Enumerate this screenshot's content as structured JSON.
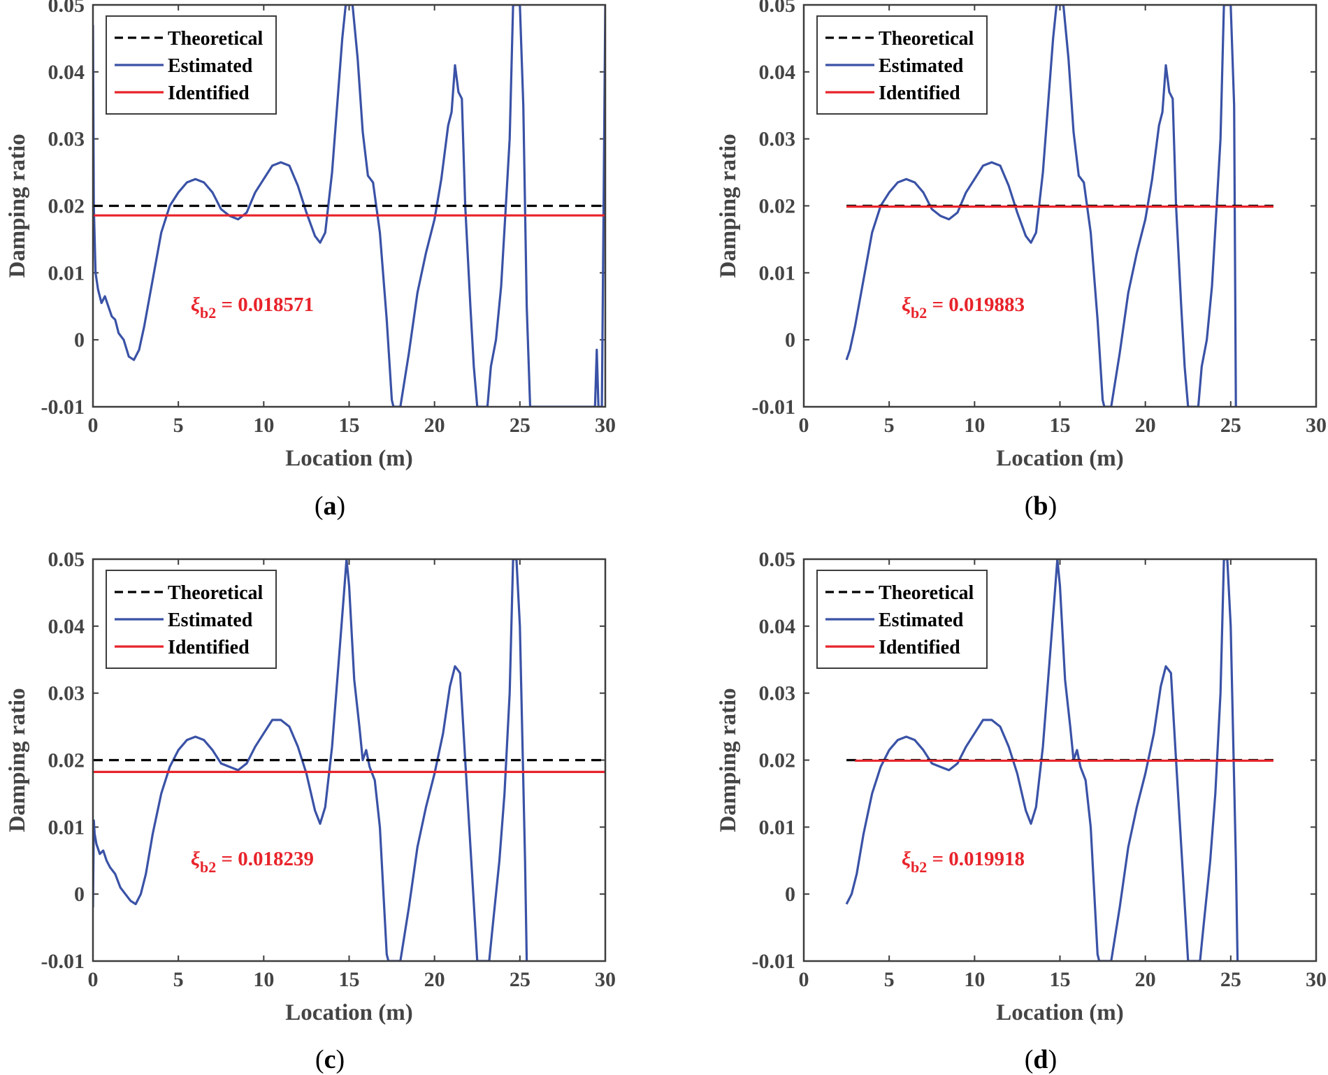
{
  "colors": {
    "theoretical": "#000000",
    "estimated": "#3a52a6",
    "identified": "#e8232a",
    "axis": "#3d3d3d",
    "label": "#444444",
    "annotation": "#e8232a"
  },
  "chart_data": [
    {
      "type": "line",
      "panel": "(a)",
      "panel_letter": "a",
      "xlabel": "Location (m)",
      "ylabel": "Damping ratio",
      "xlim": [
        0,
        30
      ],
      "ylim": [
        -0.01,
        0.05
      ],
      "xticks": [
        "0",
        "5",
        "10",
        "15",
        "20",
        "25",
        "30"
      ],
      "yticks": [
        "-0.01",
        "0",
        "0.01",
        "0.02",
        "0.03",
        "0.04",
        "0.05"
      ],
      "legend": [
        "Theoretical",
        "Estimated",
        "Identified"
      ],
      "legend_position": "top-left",
      "annotation": {
        "symbol": "ξ",
        "subscript": "b2",
        "text": " = 0.018571"
      },
      "series": [
        {
          "name": "Theoretical",
          "style": "dashed",
          "x": [
            0,
            30
          ],
          "y": [
            0.02,
            0.02
          ]
        },
        {
          "name": "Identified",
          "style": "solid",
          "x": [
            0,
            30
          ],
          "y": [
            0.018571,
            0.018571
          ]
        },
        {
          "name": "Estimated",
          "style": "solid",
          "x": [
            0,
            0.05,
            0.15,
            0.3,
            0.5,
            0.7,
            0.9,
            1.1,
            1.3,
            1.5,
            1.8,
            2.1,
            2.4,
            2.7,
            3.0,
            3.5,
            4.0,
            4.5,
            5.0,
            5.5,
            6.0,
            6.5,
            7.0,
            7.5,
            8.0,
            8.5,
            9.0,
            9.5,
            10.0,
            10.5,
            11.0,
            11.5,
            12.0,
            12.5,
            13.0,
            13.3,
            13.6,
            14.0,
            14.3,
            14.6,
            14.8,
            15.0,
            15.2,
            15.5,
            15.8,
            16.1,
            16.4,
            16.8,
            17.2,
            17.5,
            17.6,
            18.0,
            18.5,
            19.0,
            19.5,
            20.0,
            20.4,
            20.8,
            21.0,
            21.2,
            21.4,
            21.6,
            21.8,
            22.1,
            22.3,
            22.5,
            23.1,
            23.3,
            23.6,
            23.9,
            24.2,
            24.4,
            24.6,
            24.8,
            25.0,
            25.2,
            25.4,
            25.6,
            29.4,
            29.5,
            29.6,
            29.7,
            29.8,
            29.9,
            30.0
          ],
          "y": [
            0.047,
            0.02,
            0.01,
            0.0075,
            0.0055,
            0.0065,
            0.005,
            0.0035,
            0.003,
            0.001,
            0.0,
            -0.0025,
            -0.003,
            -0.0015,
            0.002,
            0.009,
            0.016,
            0.02,
            0.022,
            0.0235,
            0.024,
            0.0235,
            0.022,
            0.0195,
            0.0185,
            0.018,
            0.019,
            0.022,
            0.024,
            0.026,
            0.0265,
            0.026,
            0.023,
            0.019,
            0.0155,
            0.0145,
            0.016,
            0.025,
            0.035,
            0.045,
            0.05,
            0.05,
            0.05,
            0.042,
            0.031,
            0.0245,
            0.0235,
            0.016,
            0.003,
            -0.009,
            -0.01,
            -0.01,
            -0.002,
            0.007,
            0.013,
            0.018,
            0.024,
            0.032,
            0.034,
            0.041,
            0.037,
            0.036,
            0.02,
            0.005,
            -0.004,
            -0.01,
            -0.01,
            -0.004,
            0.0,
            0.008,
            0.021,
            0.03,
            0.05,
            0.05,
            0.05,
            0.035,
            0.005,
            -0.01,
            -0.01,
            -0.0015,
            -0.01,
            -0.01,
            -0.01,
            0.02,
            0.05
          ]
        }
      ]
    },
    {
      "type": "line",
      "panel": "(b)",
      "panel_letter": "b",
      "xlabel": "Location (m)",
      "ylabel": "Damping ratio",
      "xlim": [
        0,
        30
      ],
      "ylim": [
        -0.01,
        0.05
      ],
      "xticks": [
        "0",
        "5",
        "10",
        "15",
        "20",
        "25",
        "30"
      ],
      "yticks": [
        "-0.01",
        "0",
        "0.01",
        "0.02",
        "0.03",
        "0.04",
        "0.05"
      ],
      "legend": [
        "Theoretical",
        "Estimated",
        "Identified"
      ],
      "legend_position": "top-left",
      "annotation": {
        "symbol": "ξ",
        "subscript": "b2",
        "text": " = 0.019883"
      },
      "series": [
        {
          "name": "Theoretical",
          "style": "dashed",
          "x": [
            2.5,
            27.5
          ],
          "y": [
            0.02,
            0.02
          ]
        },
        {
          "name": "Identified",
          "style": "solid",
          "x": [
            2.5,
            27.5
          ],
          "y": [
            0.019883,
            0.019883
          ]
        },
        {
          "name": "Estimated",
          "style": "solid",
          "x": [
            2.5,
            2.7,
            3.0,
            3.5,
            4.0,
            4.5,
            5.0,
            5.5,
            6.0,
            6.5,
            7.0,
            7.5,
            8.0,
            8.5,
            9.0,
            9.5,
            10.0,
            10.5,
            11.0,
            11.5,
            12.0,
            12.5,
            13.0,
            13.3,
            13.6,
            14.0,
            14.3,
            14.6,
            14.8,
            15.0,
            15.2,
            15.5,
            15.8,
            16.1,
            16.4,
            16.8,
            17.2,
            17.5,
            17.6,
            18.0,
            18.5,
            19.0,
            19.5,
            20.0,
            20.4,
            20.8,
            21.0,
            21.2,
            21.4,
            21.6,
            21.8,
            22.1,
            22.3,
            22.5,
            23.1,
            23.3,
            23.6,
            23.9,
            24.2,
            24.4,
            24.6,
            24.8,
            25.0,
            25.2,
            25.3
          ],
          "y": [
            -0.003,
            -0.0015,
            0.002,
            0.009,
            0.016,
            0.02,
            0.022,
            0.0235,
            0.024,
            0.0235,
            0.022,
            0.0195,
            0.0185,
            0.018,
            0.019,
            0.022,
            0.024,
            0.026,
            0.0265,
            0.026,
            0.023,
            0.019,
            0.0155,
            0.0145,
            0.016,
            0.025,
            0.035,
            0.045,
            0.05,
            0.05,
            0.05,
            0.042,
            0.031,
            0.0245,
            0.0235,
            0.016,
            0.003,
            -0.009,
            -0.01,
            -0.01,
            -0.002,
            0.007,
            0.013,
            0.018,
            0.024,
            0.032,
            0.034,
            0.041,
            0.037,
            0.036,
            0.02,
            0.005,
            -0.004,
            -0.01,
            -0.01,
            -0.004,
            0.0,
            0.008,
            0.021,
            0.03,
            0.05,
            0.05,
            0.05,
            0.035,
            -0.01
          ]
        }
      ]
    },
    {
      "type": "line",
      "panel": "(c)",
      "panel_letter": "c",
      "xlabel": "Location (m)",
      "ylabel": "Damping ratio",
      "xlim": [
        0,
        30
      ],
      "ylim": [
        -0.01,
        0.05
      ],
      "xticks": [
        "0",
        "5",
        "10",
        "15",
        "20",
        "25",
        "30"
      ],
      "yticks": [
        "-0.01",
        "0",
        "0.01",
        "0.02",
        "0.03",
        "0.04",
        "0.05"
      ],
      "legend": [
        "Theoretical",
        "Estimated",
        "Identified"
      ],
      "legend_position": "top-left",
      "annotation": {
        "symbol": "ξ",
        "subscript": "b2",
        "text": " = 0.018239"
      },
      "series": [
        {
          "name": "Theoretical",
          "style": "dashed",
          "x": [
            0,
            30
          ],
          "y": [
            0.02,
            0.02
          ]
        },
        {
          "name": "Identified",
          "style": "solid",
          "x": [
            0,
            30
          ],
          "y": [
            0.018239,
            0.018239
          ]
        },
        {
          "name": "Estimated",
          "style": "solid",
          "x": [
            0,
            0.05,
            0.1,
            0.2,
            0.4,
            0.6,
            0.8,
            1.0,
            1.3,
            1.6,
            1.9,
            2.2,
            2.5,
            2.8,
            3.1,
            3.5,
            4.0,
            4.5,
            5.0,
            5.5,
            6.0,
            6.5,
            7.0,
            7.5,
            8.0,
            8.5,
            9.0,
            9.5,
            10.0,
            10.5,
            11.0,
            11.5,
            12.0,
            12.5,
            13.0,
            13.3,
            13.6,
            14.0,
            14.4,
            14.7,
            14.85,
            15.0,
            15.3,
            15.6,
            15.8,
            16.0,
            16.2,
            16.5,
            16.8,
            17.2,
            17.3,
            18.0,
            18.5,
            19.0,
            19.5,
            20.0,
            20.5,
            20.9,
            21.2,
            21.5,
            21.8,
            22.2,
            22.5,
            23.2,
            23.4,
            23.8,
            24.1,
            24.4,
            24.6,
            24.8,
            25.0,
            25.3,
            25.4
          ],
          "y": [
            -0.002,
            0.011,
            0.009,
            0.0075,
            0.006,
            0.0065,
            0.005,
            0.004,
            0.003,
            0.001,
            0.0,
            -0.001,
            -0.0015,
            0.0,
            0.003,
            0.009,
            0.015,
            0.019,
            0.0215,
            0.023,
            0.0235,
            0.023,
            0.0215,
            0.0195,
            0.019,
            0.0185,
            0.0195,
            0.022,
            0.024,
            0.026,
            0.026,
            0.025,
            0.022,
            0.018,
            0.0125,
            0.0105,
            0.013,
            0.022,
            0.035,
            0.045,
            0.05,
            0.046,
            0.032,
            0.025,
            0.02,
            0.0215,
            0.019,
            0.017,
            0.01,
            -0.009,
            -0.01,
            -0.01,
            -0.002,
            0.007,
            0.013,
            0.018,
            0.024,
            0.031,
            0.034,
            0.033,
            0.02,
            0.003,
            -0.01,
            -0.01,
            -0.005,
            0.005,
            0.015,
            0.03,
            0.05,
            0.05,
            0.04,
            0.005,
            -0.01
          ]
        }
      ]
    },
    {
      "type": "line",
      "panel": "(d)",
      "panel_letter": "d",
      "xlabel": "Location (m)",
      "ylabel": "Damping ratio",
      "xlim": [
        0,
        30
      ],
      "ylim": [
        -0.01,
        0.05
      ],
      "xticks": [
        "0",
        "5",
        "10",
        "15",
        "20",
        "25",
        "30"
      ],
      "yticks": [
        "-0.01",
        "0",
        "0.01",
        "0.02",
        "0.03",
        "0.04",
        "0.05"
      ],
      "legend": [
        "Theoretical",
        "Estimated",
        "Identified"
      ],
      "legend_position": "top-left",
      "annotation": {
        "symbol": "ξ",
        "subscript": "b2",
        "text": " = 0.019918"
      },
      "series": [
        {
          "name": "Theoretical",
          "style": "dashed",
          "x": [
            2.5,
            27.5
          ],
          "y": [
            0.02,
            0.02
          ]
        },
        {
          "name": "Identified",
          "style": "solid",
          "x": [
            3.0,
            27.5
          ],
          "y": [
            0.019918,
            0.019918
          ]
        },
        {
          "name": "Estimated",
          "style": "solid",
          "x": [
            2.5,
            2.8,
            3.1,
            3.5,
            4.0,
            4.5,
            5.0,
            5.5,
            6.0,
            6.5,
            7.0,
            7.5,
            8.0,
            8.5,
            9.0,
            9.5,
            10.0,
            10.5,
            11.0,
            11.5,
            12.0,
            12.5,
            13.0,
            13.3,
            13.6,
            14.0,
            14.4,
            14.7,
            14.85,
            15.0,
            15.3,
            15.6,
            15.8,
            16.0,
            16.2,
            16.5,
            16.8,
            17.2,
            17.3,
            18.0,
            18.5,
            19.0,
            19.5,
            20.0,
            20.5,
            20.9,
            21.2,
            21.5,
            21.8,
            22.2,
            22.5,
            23.2,
            23.4,
            23.8,
            24.1,
            24.4,
            24.6,
            24.8,
            25.0,
            25.3,
            25.4
          ],
          "y": [
            -0.0015,
            0.0,
            0.003,
            0.009,
            0.015,
            0.019,
            0.0215,
            0.023,
            0.0235,
            0.023,
            0.0215,
            0.0195,
            0.019,
            0.0185,
            0.0195,
            0.022,
            0.024,
            0.026,
            0.026,
            0.025,
            0.022,
            0.018,
            0.0125,
            0.0105,
            0.013,
            0.022,
            0.035,
            0.045,
            0.05,
            0.046,
            0.032,
            0.025,
            0.02,
            0.0215,
            0.019,
            0.017,
            0.01,
            -0.009,
            -0.01,
            -0.01,
            -0.002,
            0.007,
            0.013,
            0.018,
            0.024,
            0.031,
            0.034,
            0.033,
            0.02,
            0.003,
            -0.01,
            -0.01,
            -0.005,
            0.005,
            0.015,
            0.03,
            0.05,
            0.05,
            0.04,
            0.005,
            -0.01
          ]
        }
      ]
    }
  ]
}
